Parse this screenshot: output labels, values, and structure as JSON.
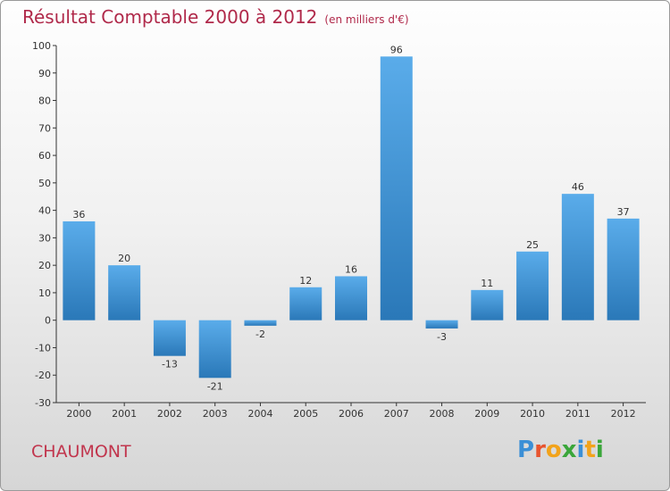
{
  "title": {
    "main": "Résultat Comptable 2000 à 2012",
    "unit": "(en milliers d'€)"
  },
  "commune": "CHAUMONT",
  "brand": {
    "name": "Proxiti"
  },
  "colors": {
    "title": "#b0294a",
    "bar_light": "#5aacea",
    "bar_dark": "#2a78b8",
    "axis": "#333333"
  },
  "chart_data": {
    "type": "bar",
    "title": "Résultat Comptable 2000 à 2012 (en milliers d'€)",
    "categories": [
      "2000",
      "2001",
      "2002",
      "2003",
      "2004",
      "2005",
      "2006",
      "2007",
      "2008",
      "2009",
      "2010",
      "2011",
      "2012"
    ],
    "values": [
      36,
      20,
      -13,
      -21,
      -2,
      12,
      16,
      96,
      -3,
      11,
      25,
      46,
      37
    ],
    "ylim": [
      -30,
      100
    ],
    "yticks": [
      -30,
      -20,
      -10,
      0,
      10,
      20,
      30,
      40,
      50,
      60,
      70,
      80,
      90,
      100
    ],
    "grid": false,
    "xlabel": "",
    "ylabel": ""
  }
}
